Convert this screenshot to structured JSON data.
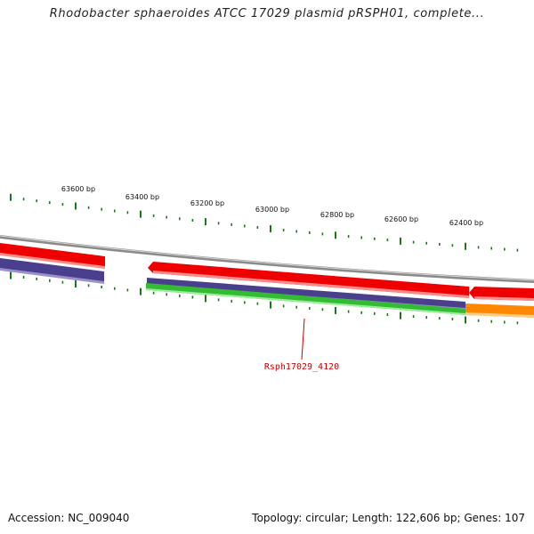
{
  "title": "Rhodobacter sphaeroides ATCC 17029 plasmid pRSPH01, complete...",
  "footer": {
    "accession": "Accession: NC_009040",
    "summary": "Topology: circular; Length: 122,606 bp; Genes: 107"
  },
  "ticks": [
    {
      "label": "63600 bp"
    },
    {
      "label": "63400 bp"
    },
    {
      "label": "63200 bp"
    },
    {
      "label": "63000 bp"
    },
    {
      "label": "62800 bp"
    },
    {
      "label": "62600 bp"
    },
    {
      "label": "62400 bp"
    }
  ],
  "colors": {
    "backbone": "#8a8a8a",
    "cds_red": "#ee0000",
    "cds_purple": "#4a3f8c",
    "cds_green": "#33bb33",
    "cds_orange": "#ff8800",
    "tick": "#1a7a1a",
    "label": "#cc0000"
  },
  "label": {
    "text": "Rsph17029_4120"
  }
}
